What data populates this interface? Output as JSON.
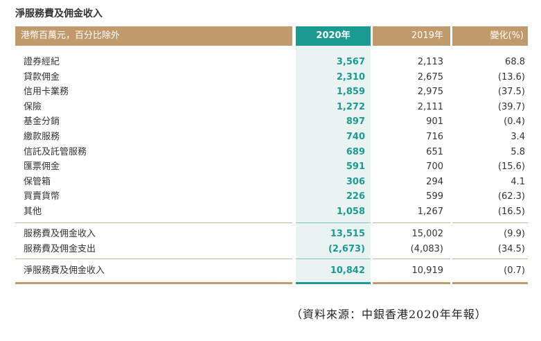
{
  "title": "淨服務費及佣金收入",
  "header": {
    "label": "港幣百萬元，百分比除外",
    "col_2020": "2020年",
    "col_2019": "2019年",
    "col_change": "變化(%)"
  },
  "rows": [
    {
      "label": "證券經紀",
      "v2020": "3,567",
      "v2019": "2,113",
      "change": "68.8"
    },
    {
      "label": "貸款佣金",
      "v2020": "2,310",
      "v2019": "2,675",
      "change": "(13.6)"
    },
    {
      "label": "信用卡業務",
      "v2020": "1,859",
      "v2019": "2,975",
      "change": "(37.5)"
    },
    {
      "label": "保險",
      "v2020": "1,272",
      "v2019": "2,111",
      "change": "(39.7)"
    },
    {
      "label": "基金分銷",
      "v2020": "897",
      "v2019": "901",
      "change": "(0.4)"
    },
    {
      "label": "繳款服務",
      "v2020": "740",
      "v2019": "716",
      "change": "3.4"
    },
    {
      "label": "信託及託管服務",
      "v2020": "689",
      "v2019": "651",
      "change": "5.8"
    },
    {
      "label": "匯票佣金",
      "v2020": "591",
      "v2019": "700",
      "change": "(15.6)"
    },
    {
      "label": "保管箱",
      "v2020": "306",
      "v2019": "294",
      "change": "4.1"
    },
    {
      "label": "買賣貨幣",
      "v2020": "226",
      "v2019": "599",
      "change": "(62.3)"
    },
    {
      "label": "其他",
      "v2020": "1,058",
      "v2019": "1,267",
      "change": "(16.5)"
    }
  ],
  "subtotals": [
    {
      "label": "服務費及佣金收入",
      "v2020": "13,515",
      "v2019": "15,002",
      "change": "(9.9)"
    },
    {
      "label": "服務費及佣金支出",
      "v2020": "(2,673)",
      "v2019": "(4,083)",
      "change": "(34.5)"
    }
  ],
  "total": {
    "label": "淨服務費及佣金收入",
    "v2020": "10,842",
    "v2019": "10,919",
    "change": "(0.7)"
  },
  "source": "（資料來源：中銀香港2020年年報）",
  "colors": {
    "gold": "#c19a6b",
    "teal": "#1b9a92",
    "teal_bg": "#e9f4f2"
  }
}
